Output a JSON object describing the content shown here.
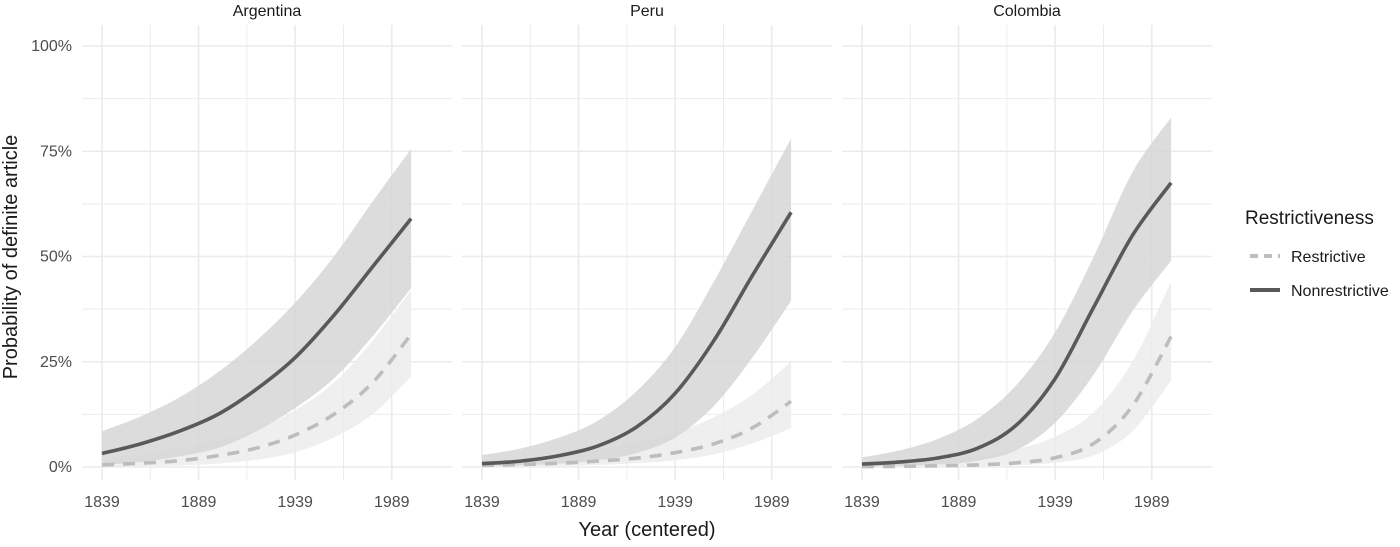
{
  "chart_data": {
    "type": "line",
    "xlabel": "Year (centered)",
    "ylabel": "Probability of definite article",
    "xlim": [
      1839,
      2000
    ],
    "ylim": [
      0,
      100
    ],
    "x_ticks": [
      "1839",
      "1889",
      "1939",
      "1989"
    ],
    "y_ticks": [
      "0%",
      "25%",
      "50%",
      "75%",
      "100%"
    ],
    "grid": true,
    "legend": {
      "title": "Restrictiveness",
      "position": "right",
      "entries": [
        {
          "label": "Restrictive",
          "style": "dashed",
          "color": "#bdbdbd"
        },
        {
          "label": "Nonrestrictive",
          "style": "solid",
          "color": "#595959"
        }
      ]
    },
    "colors": {
      "nonrestrictive_line": "#595959",
      "nonrestrictive_band": "#d6d6d6",
      "restrictive_line": "#bdbdbd",
      "restrictive_band": "#ececec"
    },
    "x": [
      1839,
      1859,
      1879,
      1899,
      1919,
      1939,
      1959,
      1979,
      1999
    ],
    "panels": [
      {
        "title": "Argentina",
        "series": [
          {
            "name": "Restrictive",
            "values": [
              0.5,
              0.9,
              1.5,
              2.7,
              4.5,
              7.6,
              12.5,
              20.0,
              31.5
            ],
            "lower": [
              0.1,
              0.2,
              0.4,
              0.8,
              1.7,
              3.5,
              7.0,
              12.5,
              21.5
            ],
            "upper": [
              2.0,
              3.0,
              4.5,
              6.5,
              9.0,
              13.5,
              20.0,
              30.0,
              42.0
            ]
          },
          {
            "name": "Nonrestrictive",
            "values": [
              3.2,
              5.5,
              8.5,
              12.5,
              18.5,
              26.0,
              36.0,
              47.5,
              59.0
            ],
            "lower": [
              0.5,
              1.2,
              2.5,
              4.5,
              8.5,
              14.0,
              21.0,
              31.0,
              42.5
            ],
            "upper": [
              8.5,
              12.0,
              16.5,
              22.5,
              30.0,
              39.0,
              50.0,
              63.0,
              75.5
            ]
          }
        ]
      },
      {
        "title": "Peru",
        "series": [
          {
            "name": "Restrictive",
            "values": [
              0.4,
              0.6,
              0.9,
              1.4,
              2.1,
              3.4,
              5.5,
              9.3,
              15.6
            ],
            "lower": [
              0.1,
              0.2,
              0.3,
              0.5,
              0.9,
              1.6,
              3.0,
              5.6,
              9.2
            ],
            "upper": [
              1.5,
              2.1,
              3.0,
              4.1,
              5.9,
              8.2,
              11.8,
              17.2,
              25.0
            ]
          },
          {
            "name": "Nonrestrictive",
            "values": [
              0.8,
              1.4,
              2.7,
              5.0,
              9.5,
              17.5,
              30.0,
              45.5,
              60.5
            ],
            "lower": [
              0.2,
              0.4,
              0.8,
              1.6,
              3.3,
              7.0,
              14.5,
              26.0,
              39.5
            ],
            "upper": [
              2.8,
              4.4,
              7.0,
              11.0,
              18.0,
              28.5,
              44.0,
              61.0,
              78.0
            ]
          }
        ]
      },
      {
        "title": "Colombia",
        "series": [
          {
            "name": "Restrictive",
            "values": [
              0.1,
              0.15,
              0.3,
              0.5,
              1.0,
              2.2,
              5.6,
              14.5,
              31.0
            ],
            "lower": [
              0.0,
              0.05,
              0.1,
              0.2,
              0.4,
              1.0,
              2.8,
              8.5,
              20.5
            ],
            "upper": [
              0.8,
              1.2,
              1.8,
              2.6,
              4.2,
              7.2,
              13.0,
              25.0,
              44.0
            ]
          },
          {
            "name": "Nonrestrictive",
            "values": [
              0.7,
              1.2,
              2.2,
              4.5,
              10.0,
              21.0,
              38.0,
              55.0,
              67.5
            ],
            "lower": [
              0.1,
              0.3,
              0.6,
              1.5,
              4.0,
              10.5,
              22.0,
              37.0,
              49.0
            ],
            "upper": [
              2.3,
              4.0,
              6.8,
              11.5,
              19.5,
              32.0,
              50.0,
              70.0,
              83.0
            ]
          }
        ]
      }
    ]
  }
}
